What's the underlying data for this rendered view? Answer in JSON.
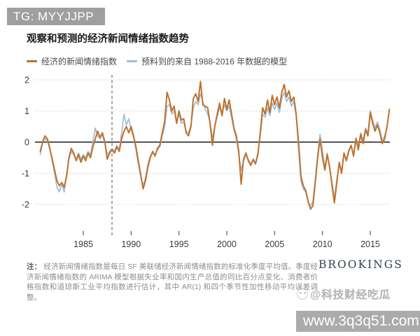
{
  "badge": {
    "text": "TG: MYYJJPP"
  },
  "chart": {
    "title": "观察和预测的经济新闻情绪指数趋势",
    "legend": [
      {
        "label": "经济的新闻情绪指数",
        "color": "#c0712c"
      },
      {
        "label": "预料到的来自 1988-2016 年数据的模型",
        "color": "#a3bcd4"
      }
    ]
  },
  "chart_data": {
    "type": "line",
    "title": "观察和预测的经济新闻情绪指数趋势",
    "xlabel": "",
    "ylabel": "",
    "x_start": 1980.5,
    "x_step": 0.25,
    "x_end": 2017.0,
    "xlim": [
      1979.95,
      2017.05
    ],
    "ylim": [
      -2.5,
      2.3
    ],
    "xticks": [
      1985,
      1990,
      1995,
      2000,
      2005,
      2010,
      2015
    ],
    "yticks": [
      2,
      1,
      0,
      -1,
      -2
    ],
    "grid": "dotted horizontal gridlines at ±1 and ±2, solid zero line",
    "annotations": [
      {
        "type": "vline",
        "x": 1988,
        "style": "dashed"
      }
    ],
    "legend_position": "top-left",
    "series": [
      {
        "name": "经济的新闻情绪指数",
        "color": "#c0712c",
        "width": 2,
        "values": [
          -0.3,
          0.0,
          0.2,
          0.1,
          -0.2,
          -0.55,
          -0.9,
          -1.25,
          -1.4,
          -1.3,
          -1.45,
          -1.1,
          -0.5,
          -0.2,
          -0.35,
          -0.6,
          -0.4,
          -0.65,
          -0.45,
          -0.6,
          -0.35,
          -0.5,
          -0.15,
          0.1,
          0.35,
          0.15,
          0.3,
          0.0,
          -0.55,
          -0.35,
          -0.25,
          -0.35,
          -0.15,
          -0.3,
          0.1,
          0.35,
          0.5,
          0.3,
          0.5,
          0.2,
          -0.15,
          -0.6,
          -1.05,
          -1.5,
          -1.25,
          -0.8,
          -0.5,
          -0.3,
          -0.45,
          -0.2,
          -0.1,
          0.3,
          0.65,
          1.6,
          1.35,
          1.0,
          1.15,
          0.6,
          1.0,
          0.7,
          0.75,
          0.3,
          0.2,
          0.5,
          1.4,
          1.55,
          1.3,
          1.95,
          1.2,
          1.15,
          1.1,
          0.6,
          -0.1,
          0.5,
          0.9,
          1.25,
          0.85,
          1.4,
          1.05,
          1.35,
          0.9,
          0.45,
          0.2,
          -0.3,
          -1.35,
          -0.55,
          -0.35,
          -0.6,
          -0.75,
          -0.55,
          -0.7,
          -0.4,
          0.3,
          1.1,
          0.9,
          1.35,
          0.95,
          1.5,
          1.2,
          1.45,
          1.1,
          1.6,
          1.85,
          1.45,
          1.65,
          1.3,
          1.45,
          0.9,
          0.0,
          -1.1,
          -1.4,
          -1.55,
          -1.9,
          -2.15,
          -2.05,
          -1.3,
          -0.5,
          0.1,
          -0.5,
          -0.9,
          -0.4,
          -0.8,
          -1.4,
          -1.95,
          -1.3,
          -0.65,
          -1.0,
          -0.35,
          -0.6,
          -0.3,
          -0.1,
          -0.45,
          0.1,
          -0.25,
          0.25,
          -0.05,
          0.4,
          0.2,
          0.95,
          0.6,
          0.35,
          0.55,
          0.3,
          -0.05,
          0.1,
          0.5,
          1.05
        ]
      },
      {
        "name": "预料到的来自 1988-2016 年数据的模型",
        "color": "#a3bcd4",
        "width": 1.7,
        "values": [
          -0.4,
          0.0,
          0.1,
          0.05,
          -0.25,
          -0.6,
          -1.0,
          -1.45,
          -1.6,
          -1.35,
          -1.6,
          -1.05,
          -0.55,
          -0.3,
          -0.4,
          -0.55,
          -0.35,
          -0.55,
          -0.4,
          -0.5,
          -0.3,
          -0.4,
          0.0,
          0.45,
          0.2,
          0.1,
          0.25,
          -0.05,
          -0.4,
          -0.3,
          -0.2,
          -0.3,
          -0.1,
          -0.25,
          0.3,
          0.9,
          0.55,
          0.75,
          0.4,
          0.15,
          -0.25,
          -0.7,
          -1.1,
          -1.4,
          -1.15,
          -0.7,
          -0.45,
          -0.35,
          -0.4,
          -0.25,
          -0.15,
          0.2,
          0.5,
          1.15,
          1.2,
          0.9,
          1.0,
          0.65,
          0.9,
          0.6,
          0.65,
          0.35,
          0.3,
          0.55,
          1.1,
          1.3,
          1.2,
          1.55,
          1.3,
          1.05,
          0.9,
          0.65,
          0.1,
          0.55,
          0.8,
          1.1,
          0.9,
          1.2,
          1.0,
          1.15,
          0.8,
          0.4,
          0.1,
          -0.4,
          -0.9,
          -0.6,
          -0.4,
          -0.55,
          -0.7,
          -0.6,
          -0.65,
          -0.35,
          0.2,
          0.9,
          0.8,
          1.1,
          0.85,
          1.25,
          1.05,
          1.25,
          0.95,
          1.4,
          1.6,
          1.3,
          1.45,
          1.15,
          1.3,
          0.85,
          -0.2,
          -1.25,
          -1.5,
          -1.6,
          -1.95,
          -2.05,
          -1.9,
          -1.2,
          -0.4,
          0.25,
          -0.3,
          -0.8,
          -0.35,
          -0.85,
          -1.3,
          -1.8,
          -1.2,
          -0.7,
          -0.9,
          -0.4,
          -0.55,
          -0.25,
          -0.15,
          -0.4,
          0.15,
          -0.15,
          0.3,
          0.05,
          0.45,
          0.3,
          1.0,
          0.7,
          0.45,
          0.65,
          0.4,
          0.05,
          0.2,
          0.45,
          null
        ]
      }
    ]
  },
  "footnote": {
    "prefix": "注：",
    "text": "经济新闻情绪指数是每日 SF 美联储经济新闻情绪指数的标准化季度平均值。季度经济新闻情绪指数的 ARIMA 模型根据失业率和国内生产总值的同比百分点变化、消费者价格指数和道琼斯工业平均指数进行估计，其中 AR(1) 和四个季节性加性移动平均误差调整。"
  },
  "branding": {
    "logo": "BROOKINGS"
  },
  "watermarks": {
    "social": "@科技财经吃瓜",
    "url": "www.3q3q51.com"
  }
}
